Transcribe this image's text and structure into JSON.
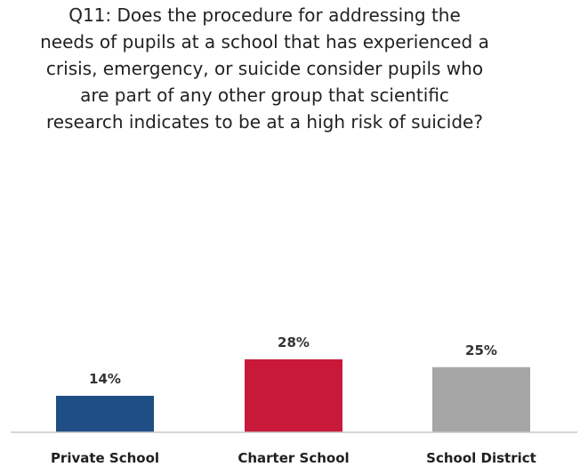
{
  "chart_data": {
    "type": "bar",
    "title": "Q11: Does the procedure for addressing the\nneeds of pupils at a school that has experienced a\ncrisis, emergency, or suicide consider pupils who\nare part of any other group that scientific\nresearch indicates to be at a high risk of suicide?",
    "categories": [
      "Private School",
      "Charter School",
      "School District"
    ],
    "values": [
      14,
      28,
      25
    ],
    "value_labels": [
      "14%",
      "28%",
      "25%"
    ],
    "colors": [
      "#1f4e85",
      "#c8193a",
      "#a6a6a6"
    ],
    "xlabel": "",
    "ylabel": "",
    "grid": false,
    "legend": "none"
  }
}
